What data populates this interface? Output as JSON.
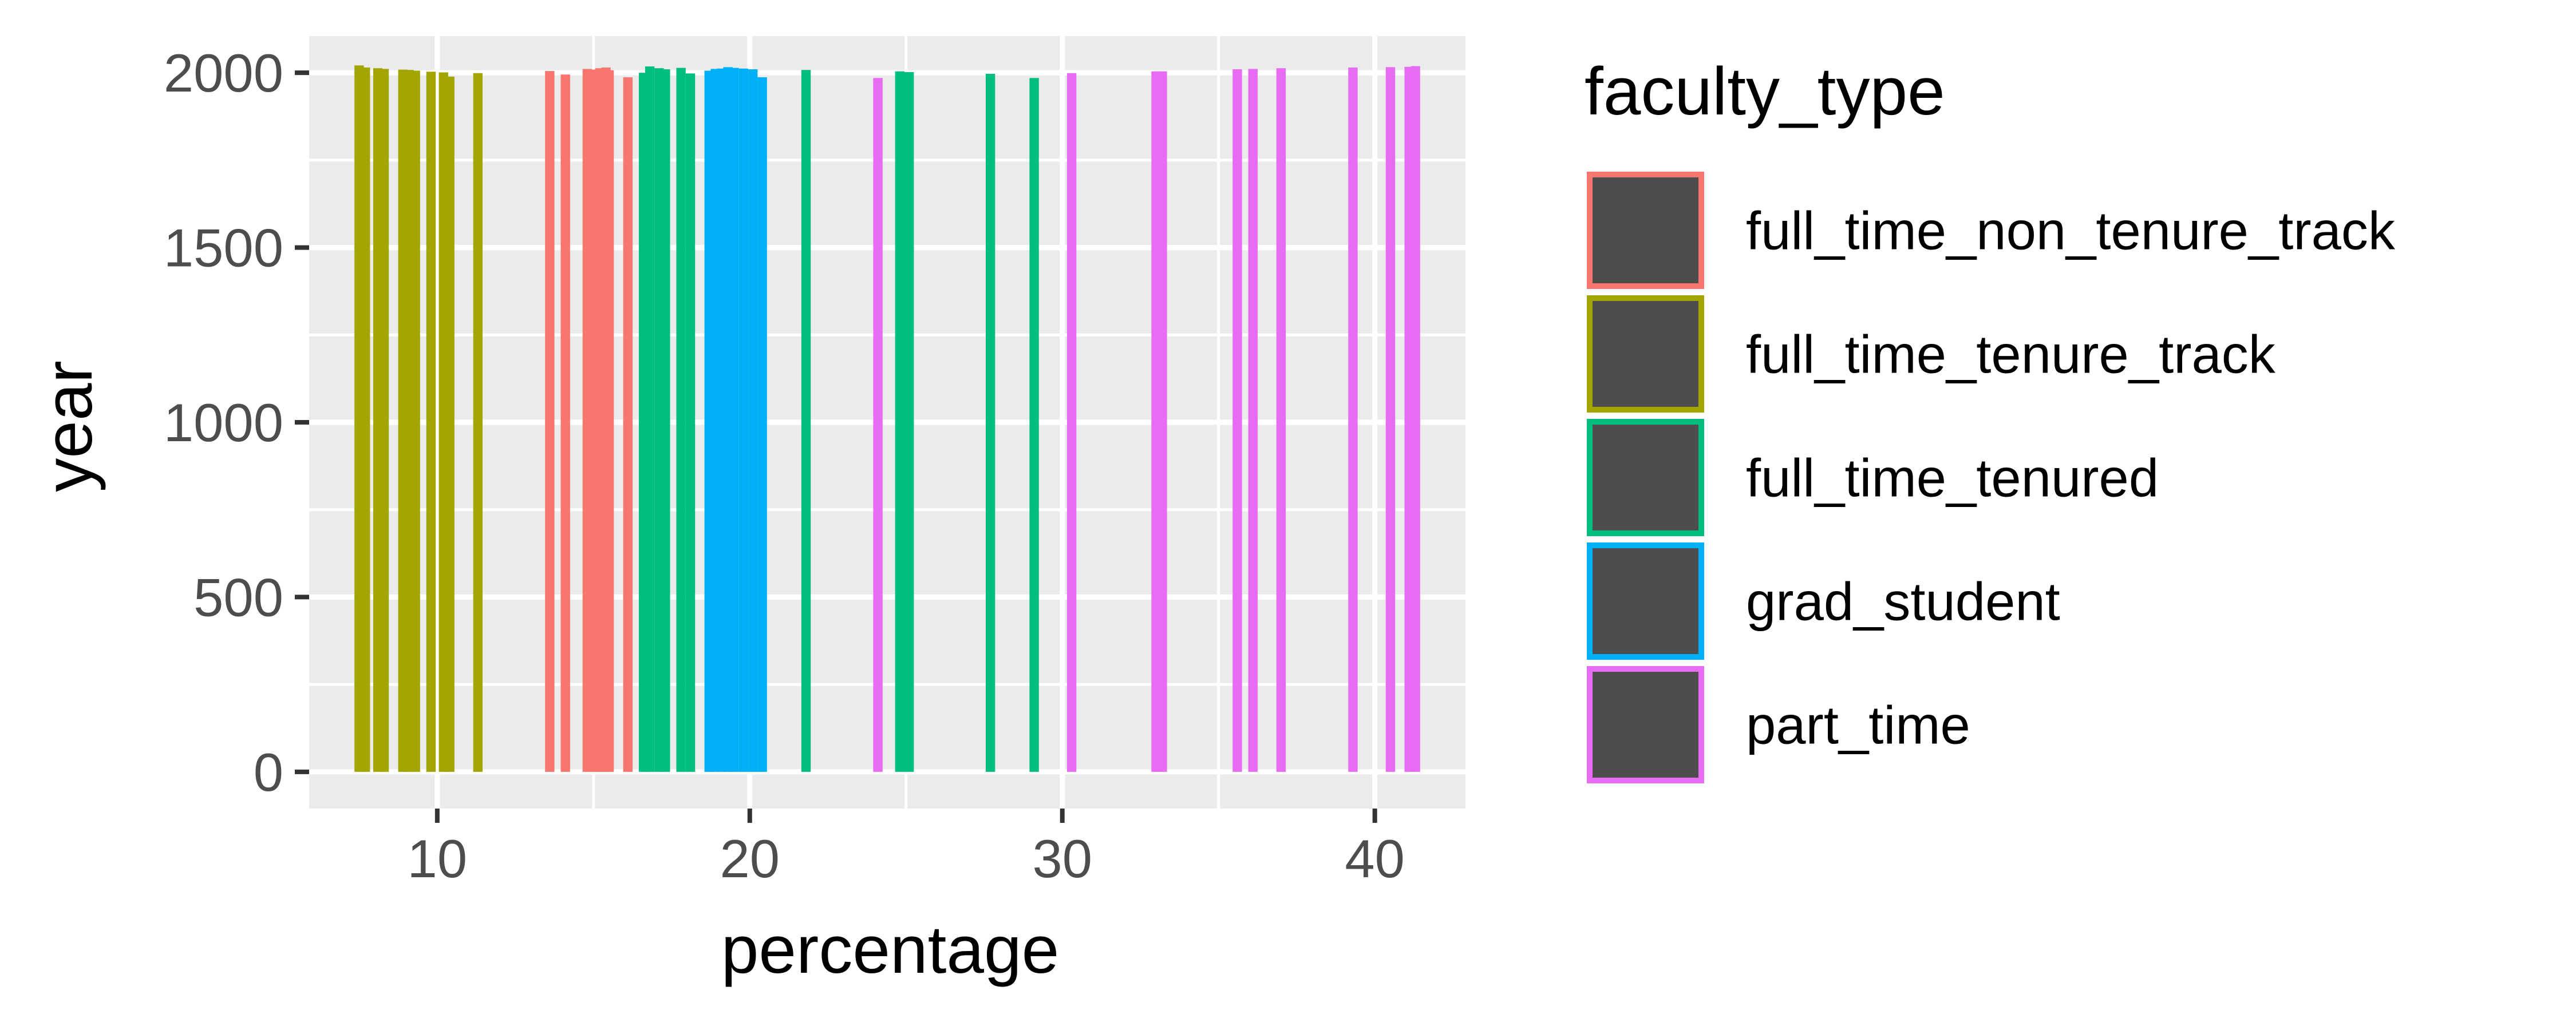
{
  "chart_data": {
    "type": "bar",
    "xlabel": "percentage",
    "ylabel": "year",
    "xlim": [
      5.9,
      42.9
    ],
    "ylim": [
      -105,
      2105
    ],
    "x_ticks": [
      10,
      20,
      30,
      40
    ],
    "y_ticks": [
      0,
      500,
      1000,
      1500,
      2000
    ],
    "grid": true,
    "legend_position": "right",
    "legend_title": "faculty_type",
    "colors": {
      "full_time_non_tenure_track": "#F8766D",
      "full_time_tenure_track": "#A3A500",
      "full_time_tenured": "#00BF7D",
      "grad_student": "#00B0F6",
      "part_time": "#E76BF3"
    },
    "series": [
      {
        "name": "full_time_non_tenure_track",
        "color": "#F8766D",
        "points": [
          {
            "x": 13.6,
            "y": 2005
          },
          {
            "x": 14.1,
            "y": 1995
          },
          {
            "x": 14.8,
            "y": 2011
          },
          {
            "x": 15.0,
            "y": 2009
          },
          {
            "x": 15.2,
            "y": 2013
          },
          {
            "x": 15.4,
            "y": 2015
          },
          {
            "x": 15.5,
            "y": 2007
          },
          {
            "x": 16.1,
            "y": 1987
          }
        ]
      },
      {
        "name": "full_time_tenure_track",
        "color": "#A3A500",
        "points": [
          {
            "x": 7.5,
            "y": 2021
          },
          {
            "x": 7.7,
            "y": 2015
          },
          {
            "x": 8.1,
            "y": 2013
          },
          {
            "x": 8.3,
            "y": 2011
          },
          {
            "x": 8.9,
            "y": 2009
          },
          {
            "x": 9.1,
            "y": 2008
          },
          {
            "x": 9.3,
            "y": 2006
          },
          {
            "x": 9.8,
            "y": 2003
          },
          {
            "x": 10.2,
            "y": 2001
          },
          {
            "x": 10.4,
            "y": 1989
          },
          {
            "x": 11.3,
            "y": 1999
          }
        ]
      },
      {
        "name": "full_time_tenured",
        "color": "#00BF7D",
        "points": [
          {
            "x": 16.6,
            "y": 2000
          },
          {
            "x": 16.8,
            "y": 2018
          },
          {
            "x": 17.1,
            "y": 2013
          },
          {
            "x": 17.3,
            "y": 2010
          },
          {
            "x": 17.8,
            "y": 2014
          },
          {
            "x": 18.1,
            "y": 1998
          },
          {
            "x": 21.8,
            "y": 2008
          },
          {
            "x": 24.8,
            "y": 2004
          },
          {
            "x": 25.1,
            "y": 2002
          },
          {
            "x": 27.7,
            "y": 1997
          },
          {
            "x": 29.1,
            "y": 1985
          }
        ]
      },
      {
        "name": "grad_student",
        "color": "#00B0F6",
        "points": [
          {
            "x": 18.7,
            "y": 2006
          },
          {
            "x": 18.9,
            "y": 2011
          },
          {
            "x": 19.1,
            "y": 2012
          },
          {
            "x": 19.3,
            "y": 2016
          },
          {
            "x": 19.5,
            "y": 2014
          },
          {
            "x": 19.8,
            "y": 2012
          },
          {
            "x": 20.1,
            "y": 2010
          },
          {
            "x": 20.4,
            "y": 1987
          }
        ]
      },
      {
        "name": "part_time",
        "color": "#E76BF3",
        "points": [
          {
            "x": 24.1,
            "y": 1985
          },
          {
            "x": 30.3,
            "y": 1999
          },
          {
            "x": 33.0,
            "y": 2004
          },
          {
            "x": 33.2,
            "y": 2004
          },
          {
            "x": 35.6,
            "y": 2010
          },
          {
            "x": 36.1,
            "y": 2011
          },
          {
            "x": 37.0,
            "y": 2013
          },
          {
            "x": 39.3,
            "y": 2015
          },
          {
            "x": 40.5,
            "y": 2016
          },
          {
            "x": 41.1,
            "y": 2017
          },
          {
            "x": 41.3,
            "y": 2019
          }
        ]
      }
    ]
  }
}
